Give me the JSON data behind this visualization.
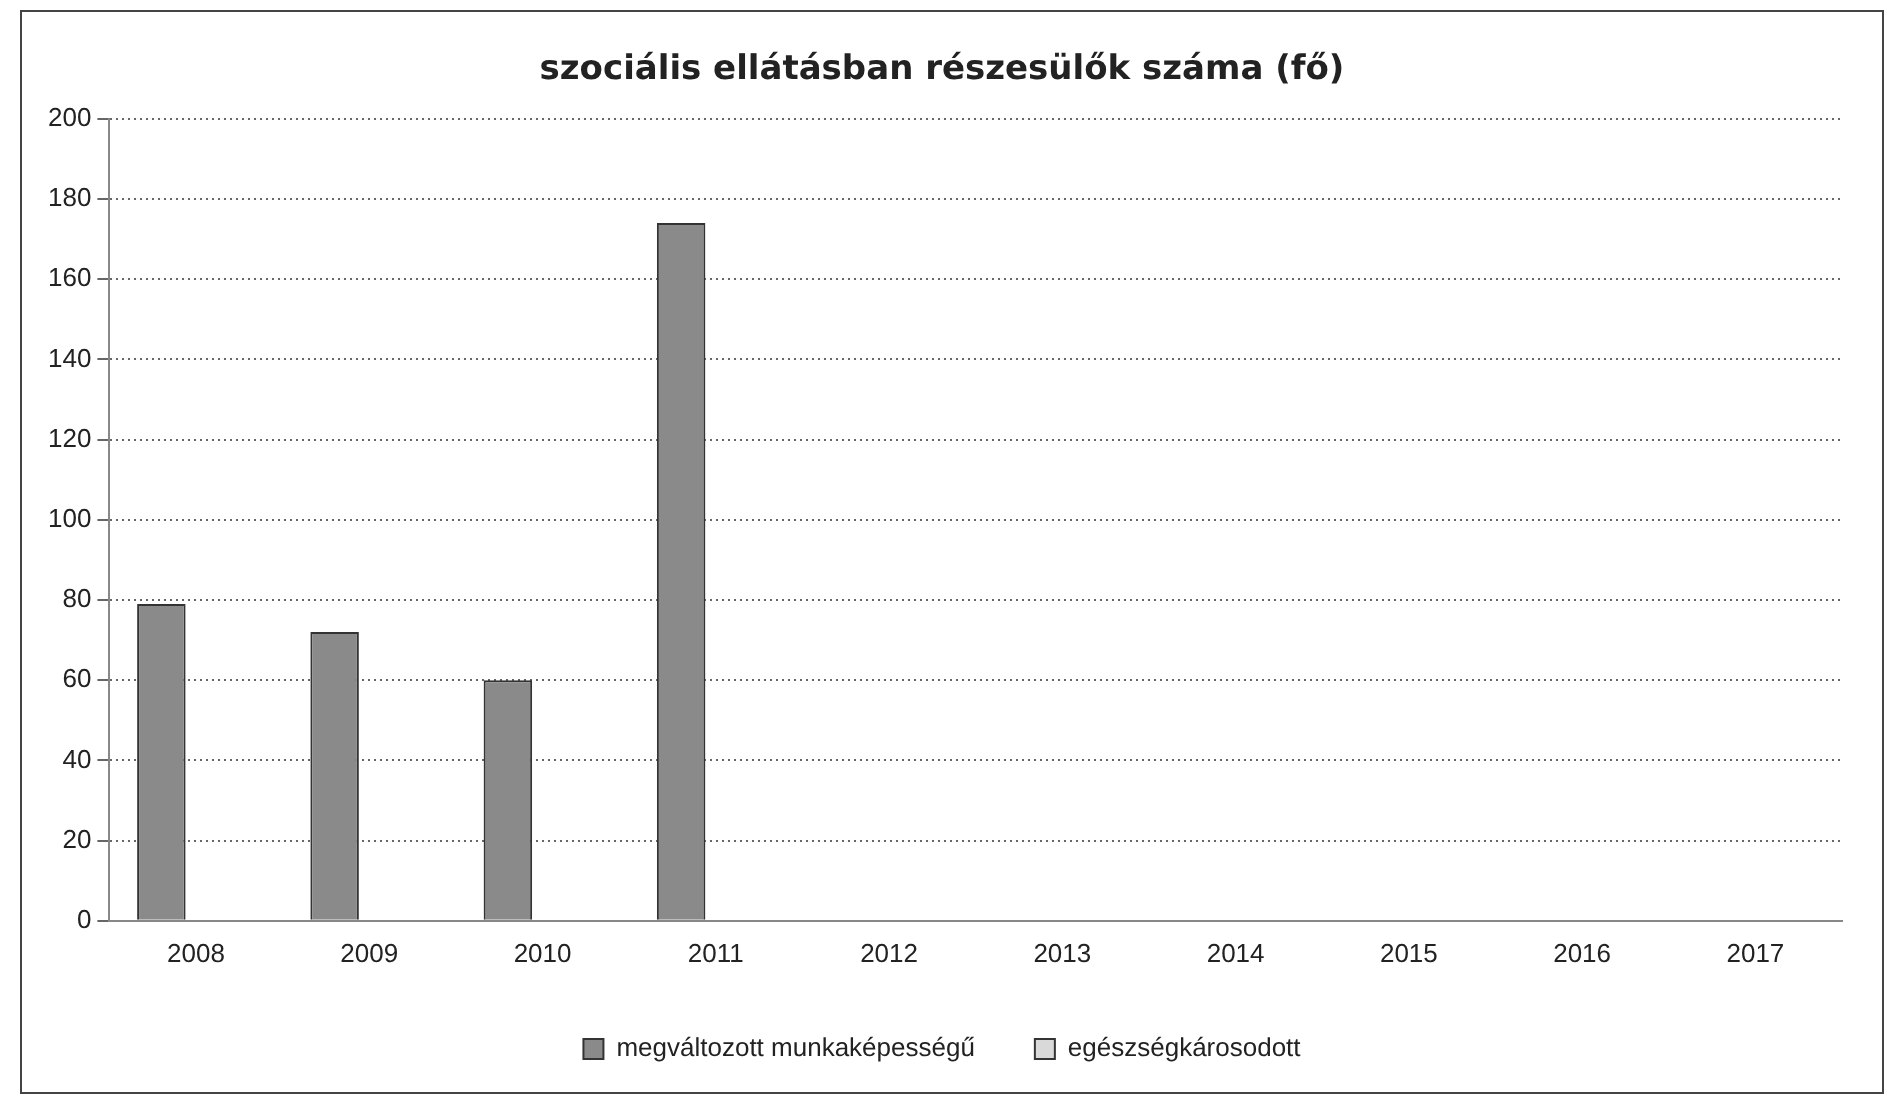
{
  "chart_data": {
    "type": "bar",
    "title": "szociális ellátásban részesülők száma (fő)",
    "categories": [
      "2008",
      "2009",
      "2010",
      "2011",
      "2012",
      "2013",
      "2014",
      "2015",
      "2016",
      "2017"
    ],
    "series": [
      {
        "name": "megváltozott munkaképességű",
        "color": "#8a8a8a",
        "values": [
          79,
          72,
          60,
          174,
          null,
          null,
          null,
          null,
          null,
          null
        ]
      },
      {
        "name": "egészségkárosodott",
        "color": "#d9d9d9",
        "values": [
          null,
          null,
          null,
          null,
          null,
          null,
          null,
          null,
          null,
          null
        ]
      }
    ],
    "ylim": [
      0,
      200
    ],
    "yticks": [
      0,
      20,
      40,
      60,
      80,
      100,
      120,
      140,
      160,
      180,
      200
    ],
    "grid": "y",
    "legend": "bottom"
  }
}
